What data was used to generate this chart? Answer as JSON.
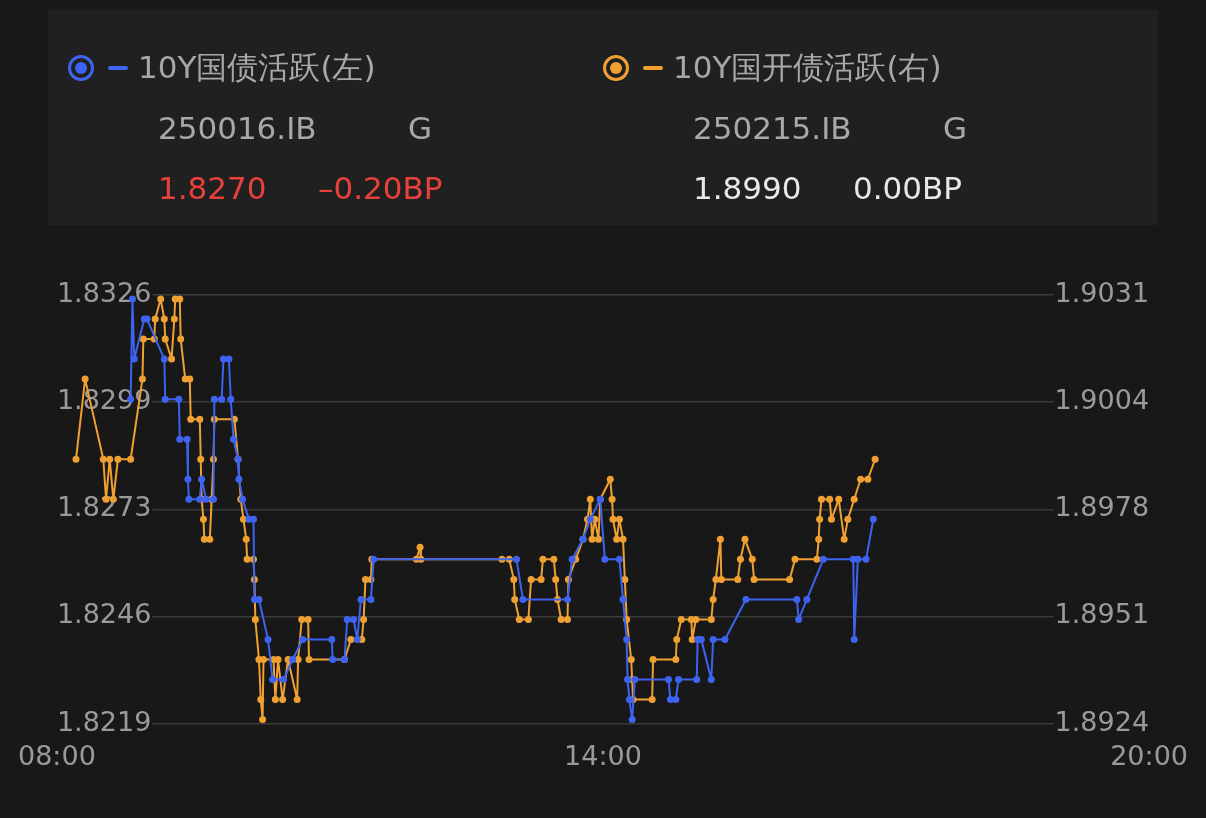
{
  "chart_data": {
    "type": "line",
    "legend": "top",
    "grid": "y",
    "marker": "circle",
    "line_style": "solid",
    "xlim": [
      8,
      20
    ],
    "xticks": [
      {
        "value": 8,
        "label": "08:00"
      },
      {
        "value": 14,
        "label": "14:00"
      },
      {
        "value": 20,
        "label": "20:00"
      }
    ],
    "ylim": [
      1.8219,
      1.8326
    ],
    "yticks": [
      {
        "value": 1.8219,
        "label": "1.8219"
      },
      {
        "value": 1.824575,
        "label": "1.8246"
      },
      {
        "value": 1.82725,
        "label": "1.8273"
      },
      {
        "value": 1.829925,
        "label": "1.8299"
      },
      {
        "value": 1.8326,
        "label": "1.8326"
      }
    ],
    "y2lim": [
      1.8924,
      1.9031
    ],
    "y2ticks": [
      {
        "value": 1.8924,
        "label": "1.8924"
      },
      {
        "value": 1.895075,
        "label": "1.8951"
      },
      {
        "value": 1.89775,
        "label": "1.8978"
      },
      {
        "value": 1.900425,
        "label": "1.9004"
      },
      {
        "value": 1.9031,
        "label": "1.9031"
      }
    ],
    "annotations": [
      "250016.IB",
      "G",
      "1.8270",
      "–0.20BP",
      "250215.IB",
      "G",
      "1.8990",
      "0.00BP"
    ],
    "series": [
      {
        "name": "10Y国债活跃(左)",
        "color": "#3d63f0",
        "axis": "y",
        "x": [
          8.81,
          8.83,
          8.85,
          8.96,
          8.99,
          9.18,
          9.19,
          9.34,
          9.35,
          9.43,
          9.44,
          9.45,
          9.57,
          9.59,
          9.64,
          9.72,
          9.73,
          9.81,
          9.83,
          9.89,
          9.91,
          9.94,
          9.99,
          10.0,
          10.04,
          10.11,
          10.16,
          10.17,
          10.22,
          10.32,
          10.37,
          10.49,
          10.59,
          10.7,
          11.02,
          11.03,
          11.16,
          11.19,
          11.26,
          11.3,
          11.34,
          11.45,
          11.48,
          13.05,
          13.12,
          13.61,
          13.66,
          13.78,
          13.86,
          13.97,
          14.02,
          14.18,
          14.22,
          14.26,
          14.27,
          14.29,
          14.32,
          14.35,
          14.72,
          14.74,
          14.8,
          14.83,
          15.03,
          15.04,
          15.08,
          15.19,
          15.21,
          15.34,
          15.57,
          16.13,
          16.15,
          16.24,
          16.42,
          16.75,
          16.76,
          16.8,
          16.89,
          16.97
        ],
        "values": [
          1.83,
          1.8325,
          1.831,
          1.832,
          1.832,
          1.831,
          1.83,
          1.83,
          1.829,
          1.829,
          1.828,
          1.8275,
          1.8275,
          1.828,
          1.8275,
          1.8275,
          1.83,
          1.83,
          1.831,
          1.831,
          1.83,
          1.829,
          1.8285,
          1.828,
          1.8275,
          1.827,
          1.827,
          1.825,
          1.825,
          1.824,
          1.823,
          1.823,
          1.8235,
          1.824,
          1.824,
          1.8235,
          1.8235,
          1.8245,
          1.8245,
          1.824,
          1.825,
          1.825,
          1.826,
          1.826,
          1.825,
          1.825,
          1.826,
          1.8265,
          1.827,
          1.8275,
          1.826,
          1.826,
          1.825,
          1.824,
          1.823,
          1.8225,
          1.822,
          1.823,
          1.823,
          1.8225,
          1.8225,
          1.823,
          1.823,
          1.824,
          1.824,
          1.823,
          1.824,
          1.824,
          1.825,
          1.825,
          1.8245,
          1.825,
          1.826,
          1.826,
          1.824,
          1.826,
          1.826,
          1.827
        ]
      },
      {
        "name": "10Y国开债活跃(右)",
        "color": "#f0a030",
        "axis": "y2",
        "x": [
          8.21,
          8.31,
          8.51,
          8.54,
          8.58,
          8.62,
          8.67,
          8.81,
          8.94,
          8.95,
          9.07,
          9.08,
          9.14,
          9.18,
          9.19,
          9.26,
          9.29,
          9.3,
          9.35,
          9.36,
          9.41,
          9.46,
          9.47,
          9.57,
          9.58,
          9.59,
          9.61,
          9.62,
          9.68,
          9.7,
          9.72,
          9.73,
          9.95,
          9.99,
          10.02,
          10.05,
          10.08,
          10.09,
          10.16,
          10.17,
          10.18,
          10.22,
          10.24,
          10.26,
          10.27,
          10.38,
          10.4,
          10.43,
          10.48,
          10.54,
          10.64,
          10.65,
          10.69,
          10.76,
          10.77,
          11.16,
          11.23,
          11.35,
          11.37,
          11.39,
          11.45,
          11.46,
          11.95,
          11.99,
          12.0,
          12.89,
          12.97,
          13.02,
          13.03,
          13.08,
          13.18,
          13.21,
          13.32,
          13.34,
          13.46,
          13.48,
          13.5,
          13.54,
          13.61,
          13.62,
          13.7,
          13.78,
          13.83,
          13.86,
          13.88,
          13.91,
          13.95,
          13.97,
          14.08,
          14.1,
          14.11,
          14.15,
          14.18,
          14.22,
          14.24,
          14.26,
          14.31,
          14.32,
          14.33,
          14.54,
          14.55,
          14.8,
          14.81,
          14.86,
          14.97,
          14.98,
          15.02,
          15.19,
          15.21,
          15.24,
          15.29,
          15.3,
          15.48,
          15.51,
          15.56,
          15.64,
          15.66,
          16.05,
          16.11,
          16.35,
          16.37,
          16.38,
          16.4,
          16.49,
          16.51,
          16.59,
          16.65,
          16.69,
          16.76,
          16.83,
          16.91,
          16.99
        ],
        "values": [
          1.899,
          1.901,
          1.899,
          1.898,
          1.899,
          1.898,
          1.899,
          1.899,
          1.901,
          1.902,
          1.902,
          1.9025,
          1.903,
          1.9025,
          1.902,
          1.9015,
          1.9025,
          1.903,
          1.903,
          1.902,
          1.901,
          1.901,
          1.9,
          1.9,
          1.899,
          1.898,
          1.8975,
          1.897,
          1.897,
          1.898,
          1.899,
          1.9,
          1.9,
          1.899,
          1.898,
          1.8975,
          1.897,
          1.8965,
          1.8965,
          1.896,
          1.895,
          1.894,
          1.893,
          1.8925,
          1.894,
          1.894,
          1.893,
          1.894,
          1.893,
          1.894,
          1.893,
          1.894,
          1.895,
          1.895,
          1.894,
          1.894,
          1.8945,
          1.8945,
          1.895,
          1.896,
          1.896,
          1.8965,
          1.8965,
          1.8968,
          1.8965,
          1.8965,
          1.8965,
          1.896,
          1.8955,
          1.895,
          1.895,
          1.896,
          1.896,
          1.8965,
          1.8965,
          1.896,
          1.8955,
          1.895,
          1.895,
          1.896,
          1.8965,
          1.897,
          1.8975,
          1.898,
          1.897,
          1.8975,
          1.897,
          1.898,
          1.8985,
          1.898,
          1.8975,
          1.897,
          1.8975,
          1.897,
          1.896,
          1.895,
          1.894,
          1.8935,
          1.893,
          1.893,
          1.894,
          1.894,
          1.8945,
          1.895,
          1.895,
          1.8945,
          1.895,
          1.895,
          1.8955,
          1.896,
          1.897,
          1.896,
          1.896,
          1.8965,
          1.897,
          1.8965,
          1.896,
          1.896,
          1.8965,
          1.8965,
          1.897,
          1.8975,
          1.898,
          1.898,
          1.8975,
          1.898,
          1.897,
          1.8975,
          1.898,
          1.8985,
          1.8985,
          1.899
        ]
      }
    ]
  }
}
